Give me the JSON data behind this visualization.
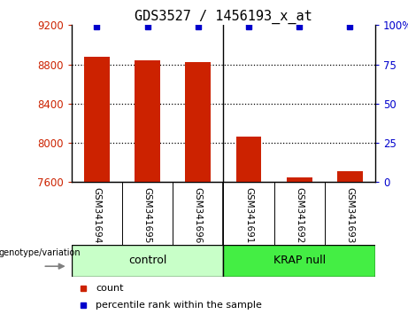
{
  "title": "GDS3527 / 1456193_x_at",
  "samples": [
    "GSM341694",
    "GSM341695",
    "GSM341696",
    "GSM341691",
    "GSM341692",
    "GSM341693"
  ],
  "counts": [
    8880,
    8840,
    8820,
    8060,
    7650,
    7710
  ],
  "percentile_ranks": [
    99,
    99,
    99,
    99,
    99,
    99
  ],
  "ylim_left": [
    7600,
    9200
  ],
  "ylim_right": [
    0,
    100
  ],
  "yticks_left": [
    7600,
    8000,
    8400,
    8800,
    9200
  ],
  "yticks_right": [
    0,
    25,
    50,
    75,
    100
  ],
  "ytick_right_labels": [
    "0",
    "25",
    "50",
    "75",
    "100%"
  ],
  "bar_color": "#cc2200",
  "dot_color": "#0000cc",
  "bg_color": "#ffffff",
  "tick_area_color": "#c8c8c8",
  "left_color": "#cc2200",
  "right_color": "#0000cc",
  "control_color": "#c8ffc8",
  "krap_color": "#44ee44",
  "legend_count_label": "count",
  "legend_percentile_label": "percentile rank within the sample",
  "genotype_label": "genotype/variation",
  "grid_lines": [
    8000,
    8400,
    8800
  ],
  "group_split": 3,
  "n_samples": 6
}
